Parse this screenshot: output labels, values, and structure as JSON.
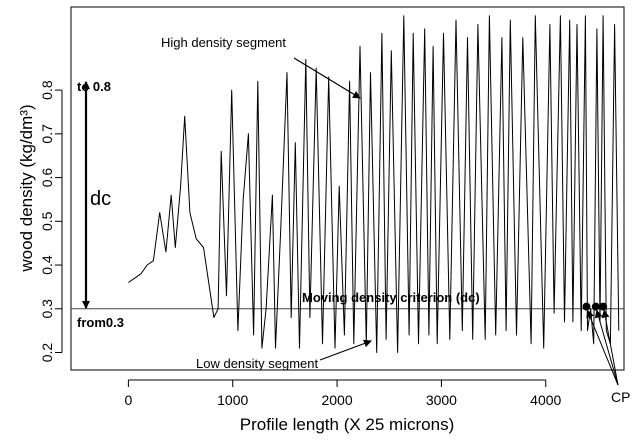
{
  "chart_data": {
    "type": "line",
    "xlabel": "Profile length (X 25 microns)",
    "ylabel": "wood density (kg/dm³)",
    "xlim": [
      -550,
      4750
    ],
    "ylim": [
      0.16,
      0.99
    ],
    "x_ticks": [
      0,
      1000,
      2000,
      3000,
      4000
    ],
    "x_tick_labels": [
      "0",
      "1000",
      "2000",
      "3000",
      "4000"
    ],
    "y_ticks": [
      0.2,
      0.3,
      0.4,
      0.5,
      0.6,
      0.7,
      0.8
    ],
    "y_tick_labels": [
      "0.2",
      "0.3",
      "0.4",
      "0.5",
      "0.6",
      "0.7",
      "0.8"
    ],
    "grid": false,
    "series": [
      {
        "color": "#000000",
        "x": [
          0,
          60,
          120,
          180,
          240,
          300,
          360,
          410,
          450,
          500,
          540,
          590,
          650,
          720,
          820,
          860,
          890,
          940,
          990,
          1050,
          1100,
          1150,
          1200,
          1240,
          1280,
          1320,
          1380,
          1410,
          1460,
          1520,
          1560,
          1600,
          1640,
          1700,
          1740,
          1800,
          1860,
          1920,
          1980,
          2020,
          2070,
          2120,
          2160,
          2220,
          2280,
          2320,
          2380,
          2430,
          2470,
          2520,
          2580,
          2640,
          2690,
          2730,
          2780,
          2840,
          2880,
          2920,
          2960,
          3020,
          3080,
          3140,
          3200,
          3250,
          3300,
          3350,
          3420,
          3460,
          3520,
          3580,
          3620,
          3660,
          3720,
          3780,
          3860,
          3900,
          3980,
          4040,
          4080,
          4140,
          4180,
          4230,
          4260,
          4300,
          4340,
          4380,
          4400,
          4430,
          4460,
          4490,
          4520,
          4550,
          4580,
          4620,
          4660,
          4700
        ],
        "y": [
          0.36,
          0.37,
          0.38,
          0.4,
          0.41,
          0.52,
          0.43,
          0.56,
          0.44,
          0.58,
          0.74,
          0.52,
          0.46,
          0.44,
          0.28,
          0.3,
          0.66,
          0.33,
          0.8,
          0.25,
          0.55,
          0.7,
          0.24,
          0.82,
          0.21,
          0.3,
          0.56,
          0.21,
          0.48,
          0.84,
          0.28,
          0.68,
          0.21,
          0.87,
          0.28,
          0.85,
          0.22,
          0.83,
          0.21,
          0.58,
          0.24,
          0.82,
          0.22,
          0.9,
          0.22,
          0.84,
          0.2,
          0.93,
          0.23,
          0.89,
          0.2,
          0.97,
          0.24,
          0.93,
          0.22,
          0.94,
          0.24,
          0.9,
          0.22,
          0.93,
          0.23,
          0.96,
          0.25,
          0.92,
          0.23,
          0.95,
          0.23,
          0.97,
          0.24,
          0.92,
          0.25,
          0.96,
          0.24,
          0.92,
          0.22,
          0.97,
          0.21,
          0.95,
          0.29,
          0.97,
          0.27,
          0.96,
          0.27,
          0.95,
          0.25,
          0.97,
          0.25,
          0.3,
          0.22,
          0.94,
          0.27,
          0.97,
          0.25,
          0.22,
          0.95,
          0.25
        ]
      }
    ],
    "criterion_line": {
      "y": 0.3,
      "label": "Moving density criterion (dc)"
    },
    "cp_points": [
      {
        "x": 4390,
        "y": 0.305
      },
      {
        "x": 4480,
        "y": 0.305
      },
      {
        "x": 4550,
        "y": 0.305
      }
    ],
    "annotations": {
      "high_density": "High density segment",
      "low_density": "Low density segment",
      "to_value": "to 0.8",
      "from_value": "from0.3",
      "dc": "dc",
      "cp": "CP"
    }
  }
}
